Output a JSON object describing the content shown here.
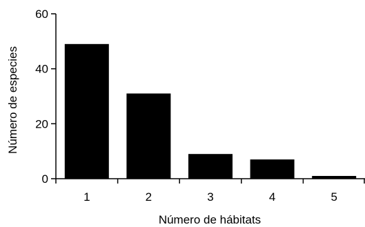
{
  "chart_data": {
    "type": "bar",
    "categories": [
      "1",
      "2",
      "3",
      "4",
      "5"
    ],
    "values": [
      49,
      31,
      9,
      7,
      1
    ],
    "title": "",
    "xlabel": "Número de hábitats",
    "ylabel": "Número de especies",
    "ylim": [
      0,
      60
    ],
    "yticks": [
      0,
      20,
      40,
      60
    ],
    "grid": false,
    "legend": "none",
    "bar_color": "#000000"
  }
}
